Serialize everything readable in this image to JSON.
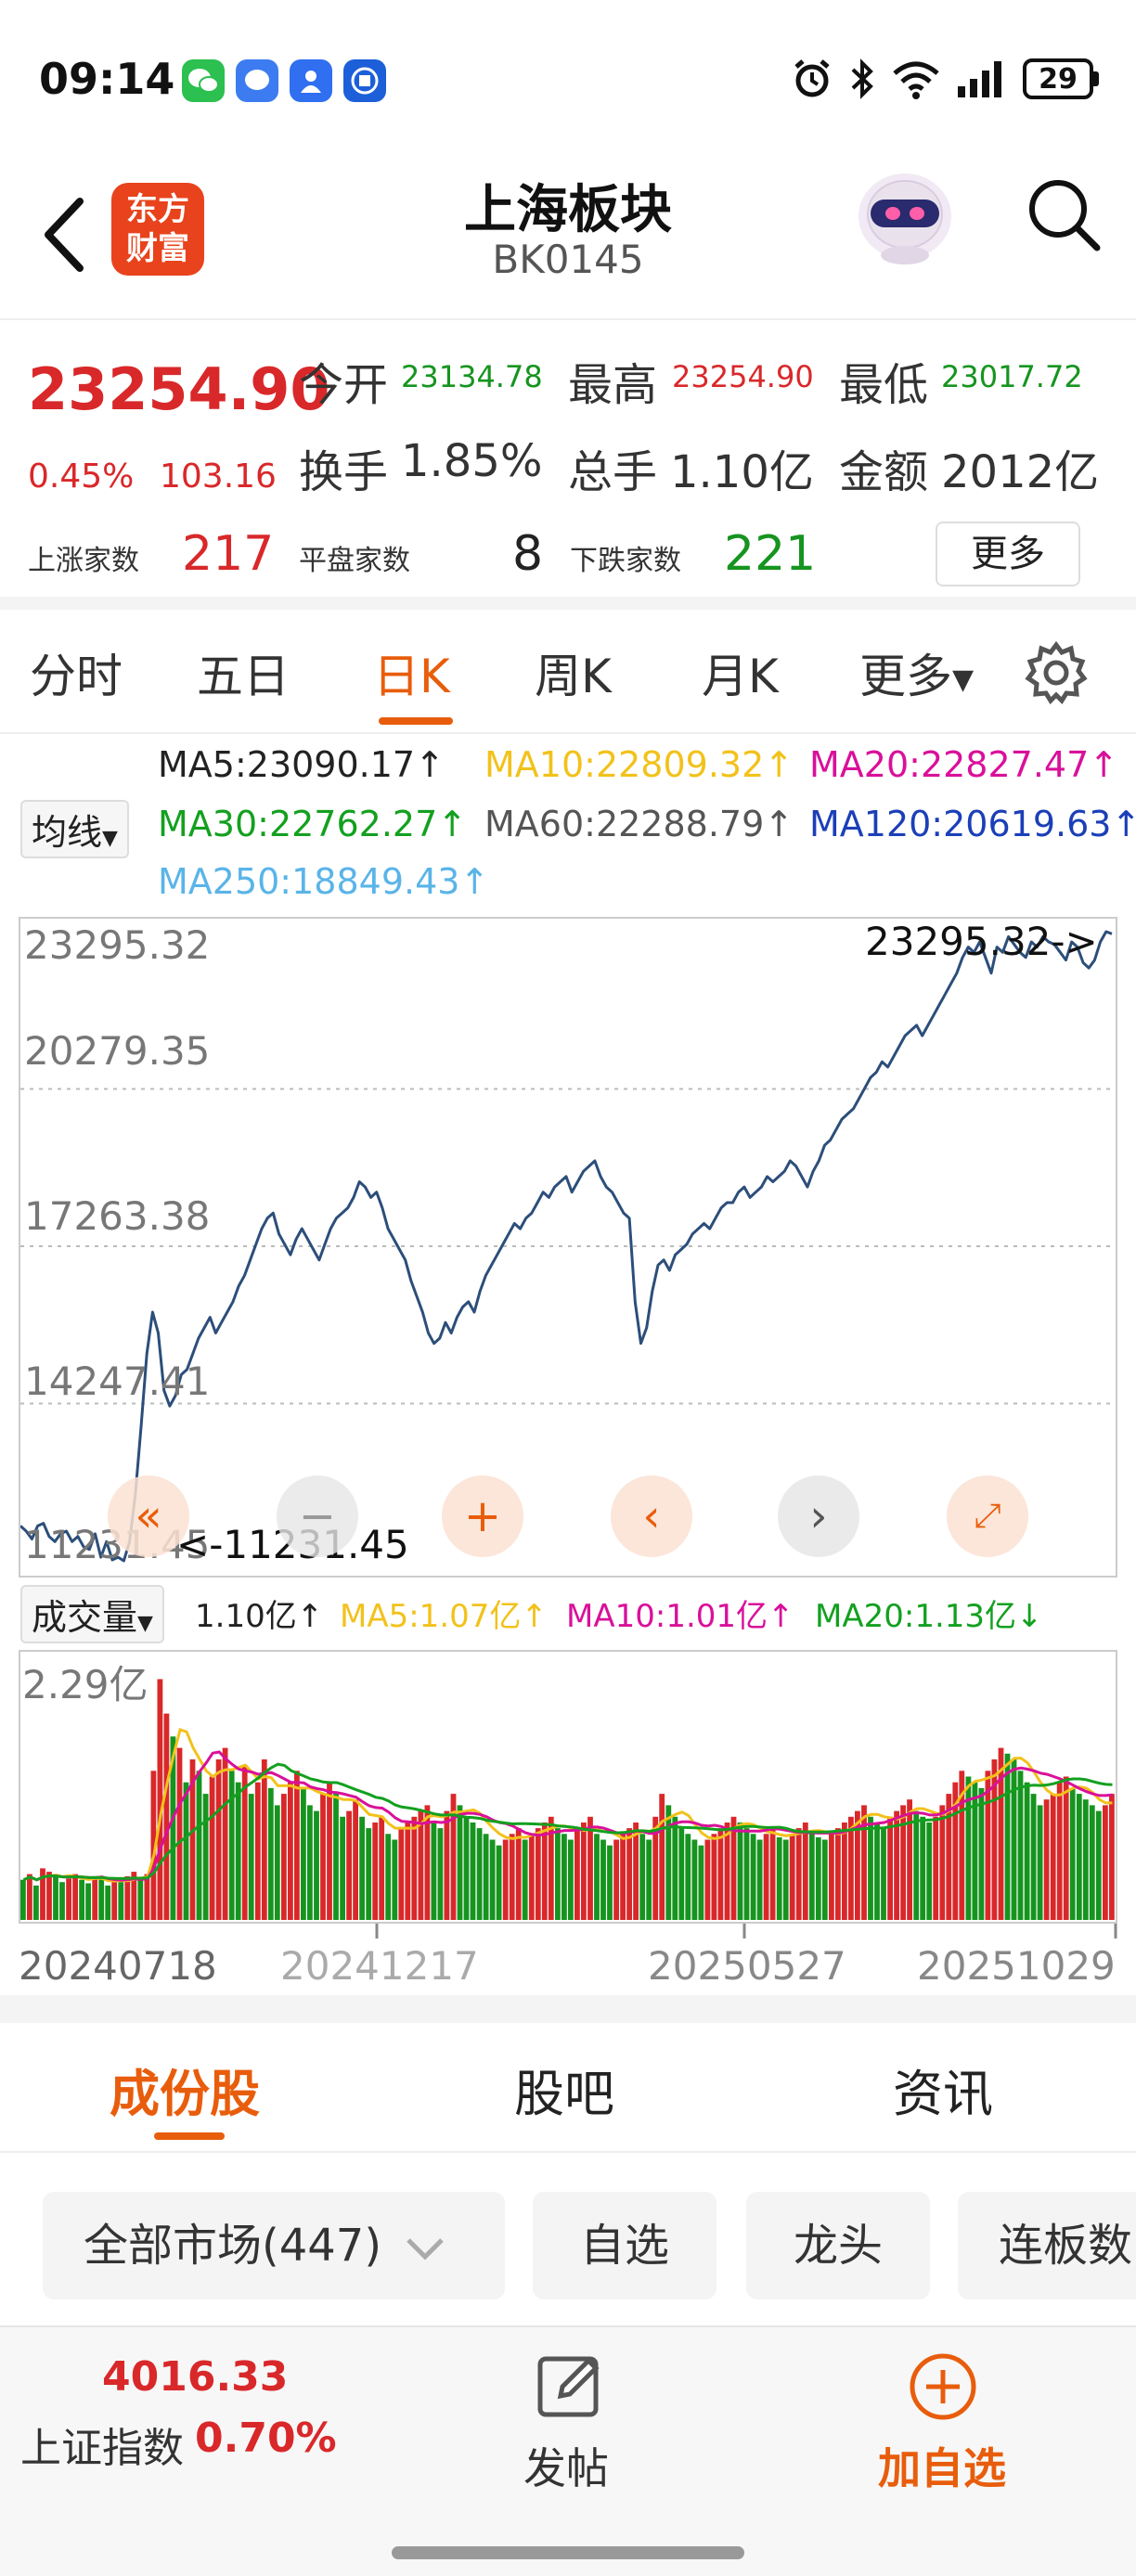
{
  "status_bar": {
    "time": "09:14",
    "battery": "29"
  },
  "header": {
    "title": "上海板块",
    "code": "BK0145",
    "logo_line1": "东方",
    "logo_line2": "财富"
  },
  "quote": {
    "price": "23254.90",
    "change_pct": "0.45%",
    "change": "103.16",
    "open_label": "今开",
    "open": "23134.78",
    "high_label": "最高",
    "high": "23254.90",
    "low_label": "最低",
    "low": "23017.72",
    "turnover_label": "换手",
    "turnover": "1.85%",
    "volume_label": "总手",
    "volume": "1.10亿",
    "amount_label": "金额",
    "amount": "2012亿",
    "up_label": "上涨家数",
    "up": "217",
    "flat_label": "平盘家数",
    "flat": "8",
    "down_label": "下跌家数",
    "down": "221",
    "more_label": "更多"
  },
  "period_tabs": [
    "分时",
    "五日",
    "日K",
    "周K",
    "月K",
    "更多"
  ],
  "ma": {
    "dropdown": "均线",
    "ma5": "MA5:23090.17↑",
    "ma10": "MA10:22809.32↑",
    "ma20": "MA20:22827.47↑",
    "ma30": "MA30:22762.27↑",
    "ma60": "MA60:22288.79↑",
    "ma120": "MA120:20619.63↑",
    "ma250": "MA250:18849.43↑"
  },
  "colors": {
    "ma5": "#222222",
    "ma10": "#f2c21b",
    "ma20": "#d9109a",
    "ma30": "#13a01f",
    "ma60": "#555555",
    "ma120": "#1b3fb8",
    "ma250": "#5ab4e8",
    "up": "#d9282a",
    "down": "#16941f",
    "accent": "#e85d0c",
    "line": "#2c4e7a"
  },
  "chart_data": [
    {
      "type": "line",
      "x_start": "20240718",
      "x_end": "20251029",
      "x_ticks": [
        "20240718",
        "20241217",
        "20250527",
        "20251029"
      ],
      "y_ticks": [
        "23295.32",
        "20279.35",
        "17263.38",
        "14247.41",
        "11231.45"
      ],
      "ylim": [
        11231.45,
        23295.32
      ],
      "max_label": "23295.32->",
      "min_label": "<-11231.45",
      "series": [
        {
          "values": [
            11900,
            11800,
            11650,
            11900,
            11950,
            11700,
            11600,
            11750,
            11800,
            11600,
            11700,
            11500,
            11450,
            11750,
            11300,
            11600,
            11250,
            11300,
            11231,
            11600,
            12500,
            13800,
            15200,
            16000,
            15600,
            14500,
            14200,
            14400,
            14800,
            14900,
            15200,
            15500,
            15700,
            15900,
            15600,
            15800,
            16000,
            16200,
            16500,
            16700,
            17000,
            17300,
            17600,
            17800,
            17900,
            17500,
            17300,
            17100,
            17400,
            17600,
            17400,
            17200,
            17000,
            17300,
            17600,
            17800,
            17900,
            18000,
            18200,
            18500,
            18400,
            18200,
            18300,
            18000,
            17600,
            17400,
            17200,
            17000,
            16600,
            16300,
            16000,
            15600,
            15400,
            15500,
            15800,
            15600,
            15900,
            16100,
            16200,
            16000,
            16400,
            16700,
            16900,
            17100,
            17300,
            17500,
            17700,
            17600,
            17800,
            17900,
            18100,
            18300,
            18200,
            18400,
            18500,
            18600,
            18300,
            18500,
            18700,
            18800,
            18900,
            18600,
            18400,
            18300,
            18100,
            17900,
            17800,
            16200,
            15400,
            15700,
            16400,
            16900,
            17000,
            16800,
            17100,
            17200,
            17300,
            17500,
            17600,
            17700,
            17600,
            17800,
            18000,
            18100,
            18100,
            18300,
            18400,
            18200,
            18300,
            18400,
            18600,
            18500,
            18600,
            18700,
            18900,
            18800,
            18600,
            18400,
            18700,
            18900,
            19200,
            19300,
            19500,
            19700,
            19800,
            19900,
            20100,
            20300,
            20500,
            20600,
            20800,
            20700,
            20900,
            21100,
            21300,
            21400,
            21500,
            21300,
            21500,
            21700,
            21900,
            22100,
            22300,
            22500,
            22800,
            23000,
            22900,
            23100,
            22800,
            22500,
            23000,
            22900,
            23200,
            23050,
            22900,
            22800,
            23100,
            23000,
            23200,
            23100,
            23050,
            22900,
            22750,
            23100,
            23000,
            22700,
            22600,
            22750,
            23100,
            23295,
            23254.9
          ]
        }
      ]
    },
    {
      "type": "bar",
      "title": "成交量",
      "y_tick": "2.29亿",
      "ylim": [
        0,
        2.29
      ],
      "current": "1.10亿↑",
      "ma5": "MA5:1.07亿↑",
      "ma10": "MA10:1.01亿↑",
      "ma20": "MA20:1.13亿↓",
      "values": [
        0.35,
        0.4,
        0.3,
        0.45,
        0.42,
        0.38,
        0.33,
        0.36,
        0.4,
        0.35,
        0.32,
        0.38,
        0.36,
        0.3,
        0.34,
        0.33,
        0.38,
        0.42,
        0.35,
        0.4,
        1.3,
        2.1,
        1.8,
        1.6,
        1.5,
        1.2,
        1.4,
        1.3,
        1.1,
        1.25,
        1.4,
        1.5,
        1.3,
        1.2,
        1.35,
        1.1,
        1.2,
        1.4,
        1.15,
        1.0,
        1.1,
        1.2,
        1.3,
        1.15,
        1.0,
        0.95,
        1.1,
        1.2,
        1.1,
        0.9,
        0.95,
        1.05,
        0.9,
        0.8,
        0.85,
        0.9,
        0.75,
        0.7,
        0.8,
        0.85,
        0.9,
        0.95,
        1.0,
        0.85,
        0.8,
        0.95,
        1.1,
        1.0,
        0.9,
        0.85,
        0.8,
        0.75,
        0.7,
        0.65,
        0.7,
        0.75,
        0.8,
        0.7,
        0.75,
        0.8,
        0.85,
        0.9,
        0.8,
        0.75,
        0.7,
        0.8,
        0.85,
        0.9,
        0.75,
        0.7,
        0.65,
        0.7,
        0.75,
        0.8,
        0.85,
        0.75,
        0.7,
        0.9,
        1.1,
        1.0,
        0.9,
        0.8,
        0.75,
        0.7,
        0.65,
        0.7,
        0.75,
        0.8,
        0.85,
        0.9,
        0.85,
        0.8,
        0.75,
        0.7,
        0.75,
        0.8,
        0.72,
        0.7,
        0.75,
        0.8,
        0.85,
        0.78,
        0.72,
        0.7,
        0.75,
        0.8,
        0.85,
        0.9,
        0.95,
        1.0,
        0.9,
        0.85,
        0.8,
        0.9,
        0.95,
        1.0,
        1.05,
        0.95,
        0.9,
        0.85,
        0.9,
        1.0,
        1.1,
        1.2,
        1.3,
        1.25,
        1.2,
        1.15,
        1.3,
        1.4,
        1.5,
        1.45,
        1.4,
        1.3,
        1.2,
        1.1,
        1.0,
        1.05,
        1.1,
        1.2,
        1.25,
        1.15,
        1.1,
        1.05,
        1.0,
        0.95,
        1.0,
        1.1
      ],
      "colors_up": [
        false,
        true,
        false,
        true,
        true,
        false,
        false,
        true,
        true,
        false,
        false,
        true,
        false,
        false,
        true,
        false,
        true,
        true,
        false,
        true,
        true,
        true,
        true,
        false,
        true,
        false,
        true,
        false,
        false,
        true,
        true,
        true,
        false,
        false,
        true,
        false,
        true,
        true,
        false,
        false,
        true,
        true,
        true,
        false,
        false,
        false,
        true,
        true,
        false,
        false,
        true,
        true,
        false,
        false,
        true,
        true,
        false,
        false,
        true,
        true,
        true,
        true,
        true,
        false,
        false,
        true,
        true,
        false,
        false,
        false,
        false,
        false,
        false,
        false,
        true,
        true,
        true,
        false,
        true,
        true,
        true,
        true,
        false,
        false,
        false,
        true,
        true,
        true,
        false,
        false,
        false,
        true,
        true,
        true,
        true,
        false,
        false,
        true,
        true,
        false,
        false,
        false,
        false,
        false,
        false,
        true,
        true,
        true,
        true,
        true,
        false,
        false,
        false,
        false,
        true,
        true,
        false,
        false,
        true,
        true,
        true,
        false,
        false,
        false,
        true,
        true,
        true,
        true,
        true,
        true,
        false,
        false,
        false,
        true,
        true,
        true,
        true,
        false,
        false,
        false,
        true,
        true,
        true,
        true,
        true,
        false,
        false,
        false,
        true,
        true,
        true,
        false,
        false,
        false,
        false,
        false,
        false,
        true,
        true,
        true,
        true,
        false,
        false,
        false,
        false,
        false,
        true,
        true
      ]
    }
  ],
  "content_tabs": [
    "成份股",
    "股吧",
    "资讯"
  ],
  "filters": [
    "全部市场(447)",
    "自选",
    "龙头",
    "连板数"
  ],
  "bottom": {
    "index_value": "4016.33",
    "index_name": "上证指数",
    "index_change": "0.70%",
    "post_label": "发帖",
    "add_label": "加自选"
  }
}
